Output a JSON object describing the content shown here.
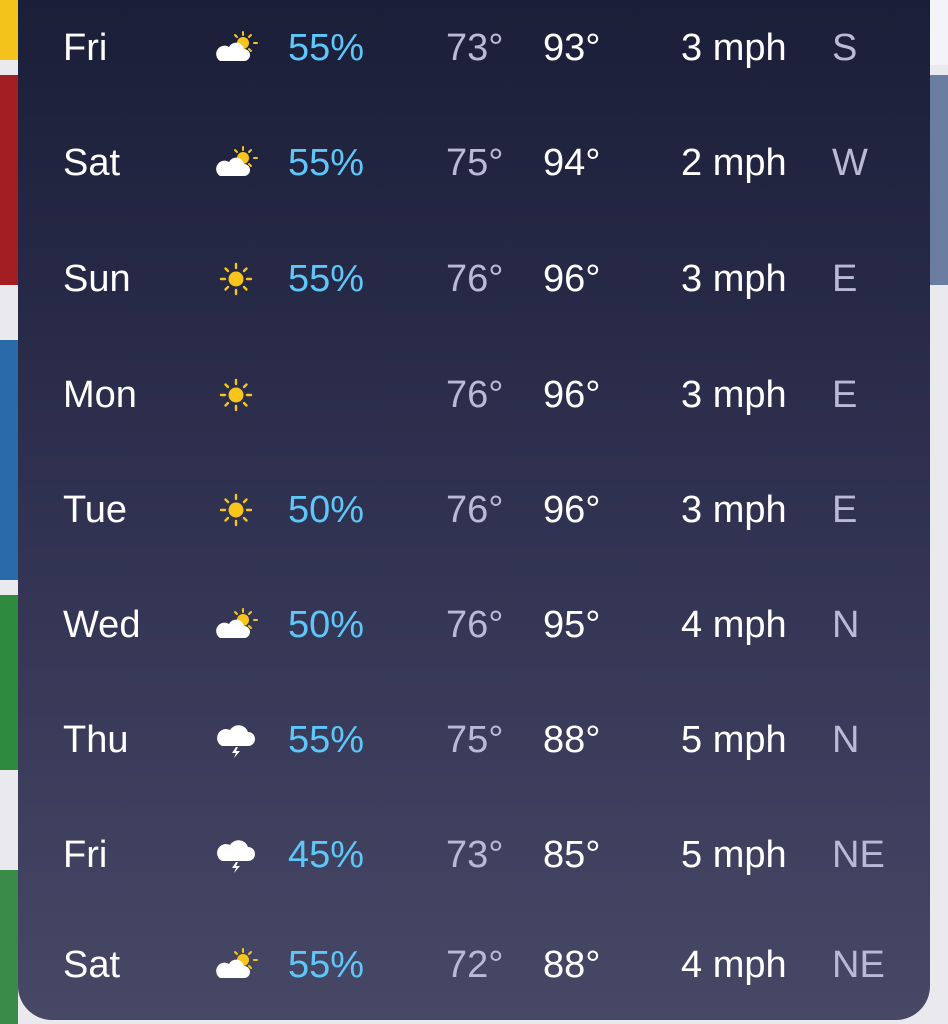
{
  "forecast": [
    {
      "day": "Fri",
      "precipitation": "55%",
      "low": "73°",
      "high": "93°",
      "wind": "3 mph",
      "direction": "S"
    },
    {
      "day": "Sat",
      "precipitation": "55%",
      "low": "75°",
      "high": "94°",
      "wind": "2 mph",
      "direction": "W"
    },
    {
      "day": "Sun",
      "precipitation": "55%",
      "low": "76°",
      "high": "96°",
      "wind": "3 mph",
      "direction": "E"
    },
    {
      "day": "Mon",
      "low": "76°",
      "high": "96°",
      "wind": "3 mph",
      "direction": "E"
    },
    {
      "day": "Tue",
      "precipitation": "50%",
      "low": "76°",
      "high": "96°",
      "wind": "3 mph",
      "direction": "E"
    },
    {
      "day": "Wed",
      "precipitation": "50%",
      "low": "76°",
      "high": "95°",
      "wind": "4 mph",
      "direction": "N"
    },
    {
      "day": "Thu",
      "precipitation": "55%",
      "low": "75°",
      "high": "88°",
      "wind": "5 mph",
      "direction": "N"
    },
    {
      "day": "Fri",
      "precipitation": "45%",
      "low": "73°",
      "high": "85°",
      "wind": "5 mph",
      "direction": "NE"
    },
    {
      "day": "Sat",
      "precipitation": "55%",
      "low": "72°",
      "high": "88°",
      "wind": "4 mph",
      "direction": "NE"
    }
  ]
}
